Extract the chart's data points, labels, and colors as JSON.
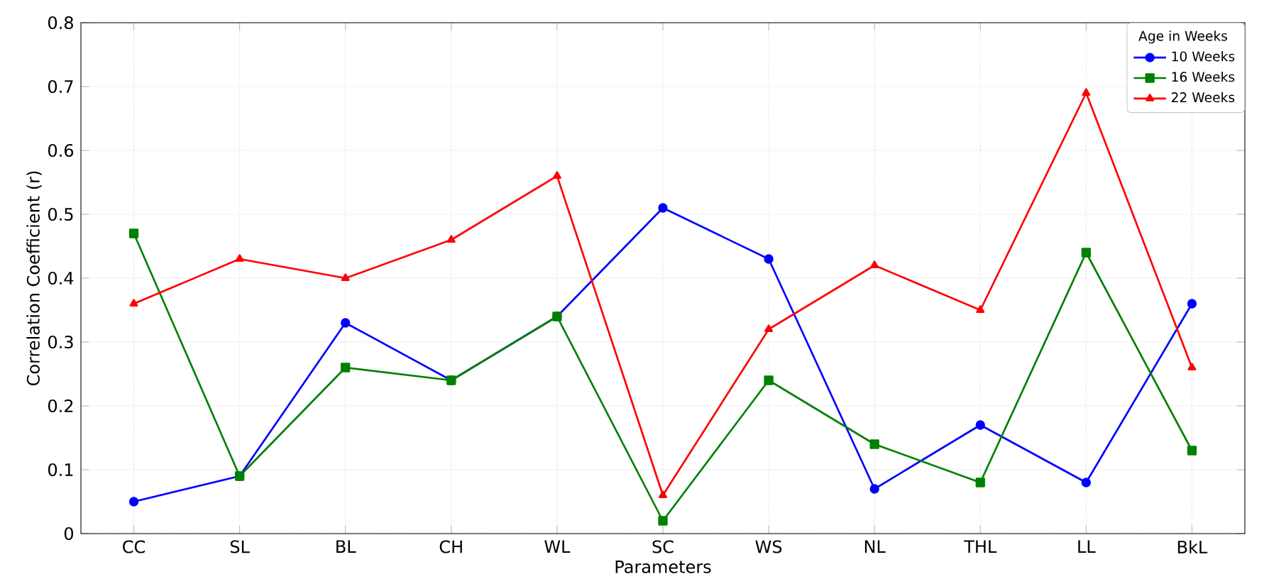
{
  "chart_data": {
    "type": "line",
    "xlabel": "Parameters",
    "ylabel": "Correlation Coefficient (r)",
    "legend_title": "Age in Weeks",
    "categories": [
      "CC",
      "SL",
      "BL",
      "CH",
      "WL",
      "SC",
      "WS",
      "NL",
      "THL",
      "LL",
      "BkL"
    ],
    "series": [
      {
        "name": "10 Weeks",
        "color": "#0000ff",
        "marker": "circle",
        "values": [
          0.05,
          0.09,
          0.33,
          0.24,
          0.34,
          0.51,
          0.43,
          0.07,
          0.17,
          0.08,
          0.36
        ]
      },
      {
        "name": "16 Weeks",
        "color": "#008000",
        "marker": "square",
        "values": [
          0.47,
          0.09,
          0.26,
          0.24,
          0.34,
          0.02,
          0.24,
          0.14,
          0.08,
          0.44,
          0.13
        ]
      },
      {
        "name": "22 Weeks",
        "color": "#ff0000",
        "marker": "triangle",
        "values": [
          0.36,
          0.43,
          0.4,
          0.46,
          0.56,
          0.06,
          0.32,
          0.42,
          0.35,
          0.69,
          0.26
        ]
      }
    ],
    "ylim": [
      0,
      0.8
    ],
    "yticks": [
      0,
      0.1,
      0.2,
      0.3,
      0.4,
      0.5,
      0.6,
      0.7,
      0.8
    ],
    "grid": true,
    "legend": "top right"
  }
}
